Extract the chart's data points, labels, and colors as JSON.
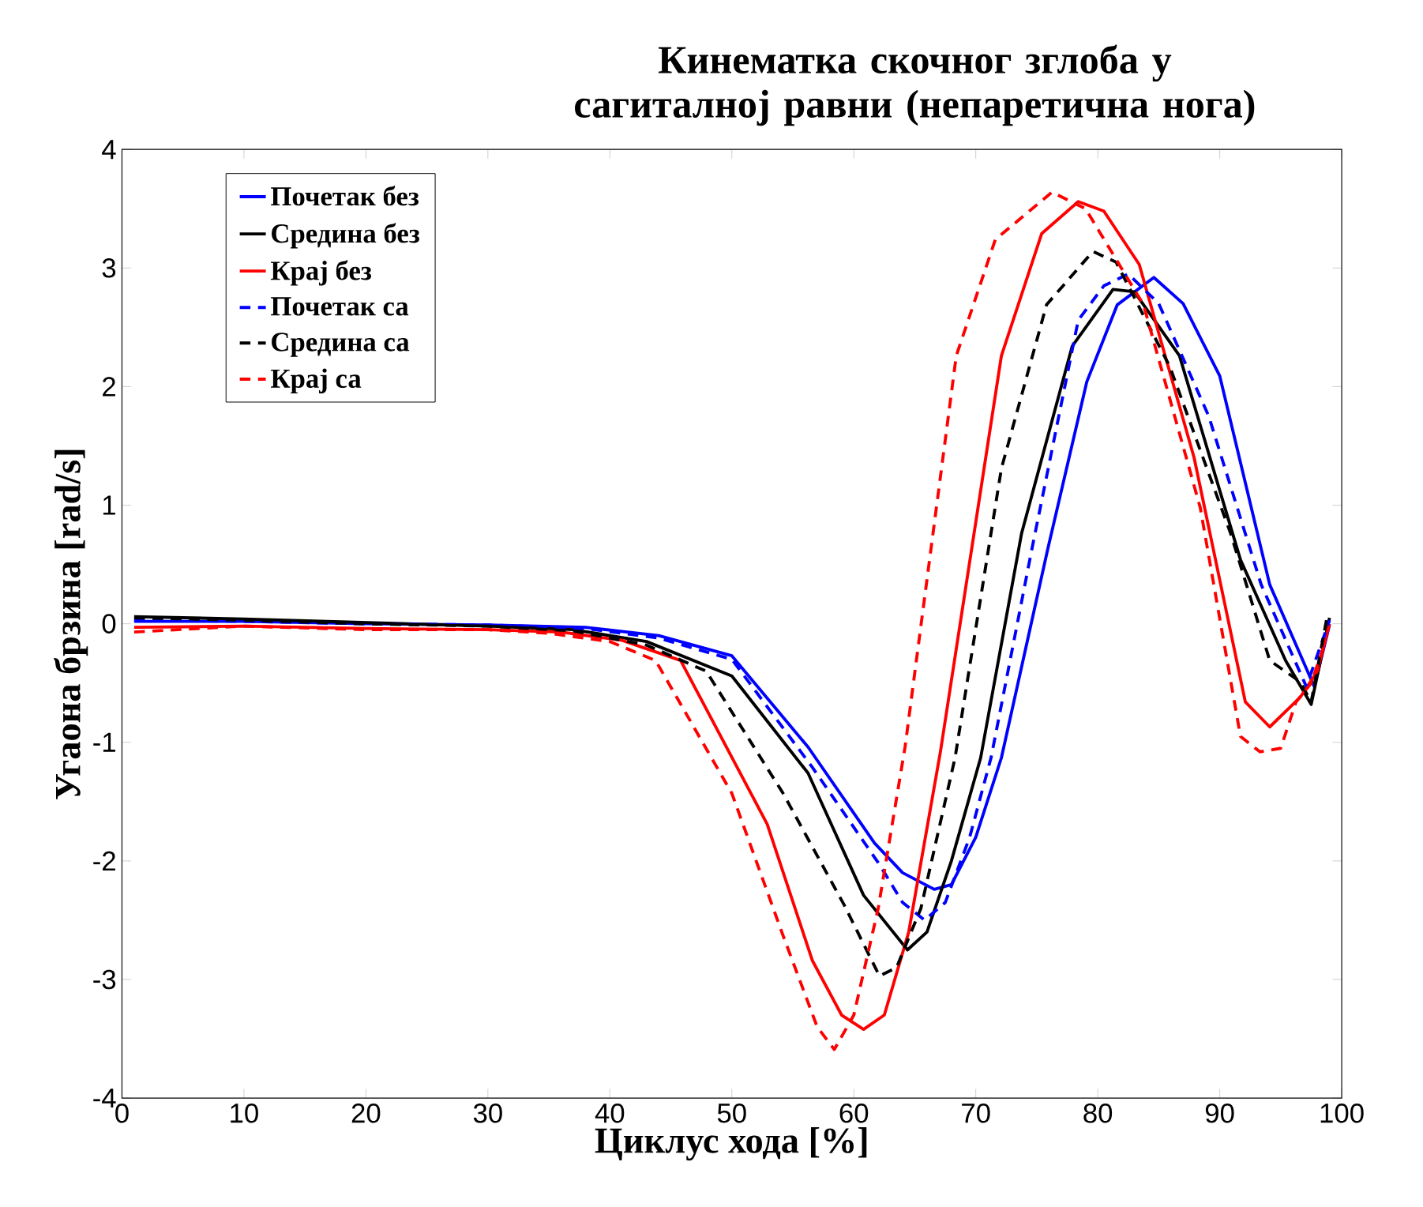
{
  "chart_data": {
    "type": "line",
    "title": "Кинематка скочног зглоба у сагиталној равни (непаретична нога)",
    "xlabel": "Циклус хода [%]",
    "ylabel": "Угаона брзина [rad/s]",
    "xlim": [
      0,
      100
    ],
    "ylim": [
      -4,
      4
    ],
    "xticks": [
      0,
      10,
      20,
      30,
      40,
      50,
      60,
      70,
      80,
      90,
      100
    ],
    "yticks": [
      -4,
      -3,
      -2,
      -1,
      0,
      1,
      2,
      3,
      4
    ],
    "grid": false,
    "legend": "top left",
    "marker": "none",
    "series": [
      {
        "name": "Почетак без",
        "color": "#0000ff",
        "line_style": "solid",
        "x": [
          1,
          10,
          20,
          30,
          38,
          44,
          50,
          56.25,
          61.7,
          64,
          66.6,
          68,
          70,
          72.1,
          75.9,
          79.1,
          81.6,
          84.6,
          87,
          90,
          94.1,
          97.75,
          99
        ],
        "values": [
          0.02,
          0.02,
          0.0,
          -0.01,
          -0.03,
          -0.1,
          -0.27,
          -1.04,
          -1.85,
          -2.1,
          -2.24,
          -2.2,
          -1.8,
          -1.13,
          0.63,
          2.04,
          2.69,
          2.92,
          2.7,
          2.09,
          0.33,
          -0.53,
          -0.01
        ]
      },
      {
        "name": "Средина без",
        "color": "#000000",
        "line_style": "solid",
        "x": [
          1,
          10,
          20,
          30,
          37,
          43,
          50,
          56.25,
          60.8,
          64.4,
          66,
          68,
          70.4,
          73.75,
          77.9,
          81.25,
          83,
          86.7,
          91.7,
          95.4,
          97.5,
          99
        ],
        "values": [
          0.06,
          0.04,
          0.01,
          -0.02,
          -0.05,
          -0.15,
          -0.44,
          -1.26,
          -2.29,
          -2.75,
          -2.6,
          -2.0,
          -1.13,
          0.76,
          2.34,
          2.82,
          2.8,
          2.26,
          0.54,
          -0.31,
          -0.68,
          0.05
        ]
      },
      {
        "name": "Крај без",
        "color": "#ff0000",
        "line_style": "solid",
        "x": [
          1,
          10,
          20,
          30,
          36,
          41,
          45.8,
          52.9,
          56.6,
          59,
          60.8,
          62.5,
          64.5,
          67.1,
          72.1,
          75.4,
          78.4,
          80.5,
          83.4,
          87.9,
          92.1,
          94.1,
          96.6,
          98,
          99
        ],
        "values": [
          -0.03,
          -0.02,
          -0.04,
          -0.05,
          -0.07,
          -0.14,
          -0.31,
          -1.69,
          -2.84,
          -3.3,
          -3.42,
          -3.3,
          -2.6,
          -1.08,
          2.26,
          3.29,
          3.56,
          3.48,
          3.03,
          1.4,
          -0.66,
          -0.87,
          -0.62,
          -0.4,
          0.0
        ]
      },
      {
        "name": "Почетак са",
        "color": "#0000ff",
        "line_style": "dashed",
        "x": [
          1,
          10,
          20,
          30,
          38,
          44,
          50,
          56.6,
          62.1,
          64,
          65.8,
          67.5,
          69.5,
          71.25,
          74.6,
          78.4,
          80.5,
          82.5,
          85,
          89.1,
          93.4,
          97.1,
          99
        ],
        "values": [
          0.03,
          0.02,
          0.0,
          -0.01,
          -0.04,
          -0.12,
          -0.3,
          -1.21,
          -2.03,
          -2.35,
          -2.5,
          -2.35,
          -1.8,
          -1.13,
          0.63,
          2.56,
          2.85,
          2.95,
          2.7,
          1.75,
          0.33,
          -0.53,
          0.03
        ]
      },
      {
        "name": "Средина са",
        "color": "#000000",
        "line_style": "dashed",
        "x": [
          1,
          10,
          20,
          30,
          37,
          43,
          47.9,
          54.2,
          59.2,
          62.1,
          63.5,
          65.5,
          68.3,
          72.1,
          75.8,
          79.6,
          81.5,
          85.9,
          90.9,
          94.1,
          96.6,
          97.5,
          98.75
        ],
        "values": [
          0.05,
          0.03,
          0.0,
          -0.02,
          -0.06,
          -0.18,
          -0.4,
          -1.43,
          -2.37,
          -2.97,
          -2.9,
          -2.4,
          -1.13,
          1.31,
          2.69,
          3.14,
          3.05,
          2.17,
          0.76,
          -0.31,
          -0.49,
          -0.66,
          0.03
        ]
      },
      {
        "name": "Крај са",
        "color": "#ff0000",
        "line_style": "dashed",
        "x": [
          1,
          10,
          20,
          30,
          35,
          40,
          43.75,
          50,
          54.2,
          57,
          58.4,
          60,
          62,
          64.2,
          68.4,
          71.6,
          76.25,
          79,
          83.75,
          88.4,
          91.7,
          93.3,
          95,
          96.25,
          97.5,
          98.5
        ],
        "values": [
          -0.07,
          -0.02,
          -0.05,
          -0.05,
          -0.08,
          -0.15,
          -0.31,
          -1.43,
          -2.63,
          -3.4,
          -3.59,
          -3.3,
          -2.4,
          -1.04,
          2.26,
          3.24,
          3.64,
          3.5,
          2.69,
          0.98,
          -0.95,
          -1.08,
          -1.05,
          -0.66,
          -0.5,
          -0.2
        ]
      }
    ]
  }
}
